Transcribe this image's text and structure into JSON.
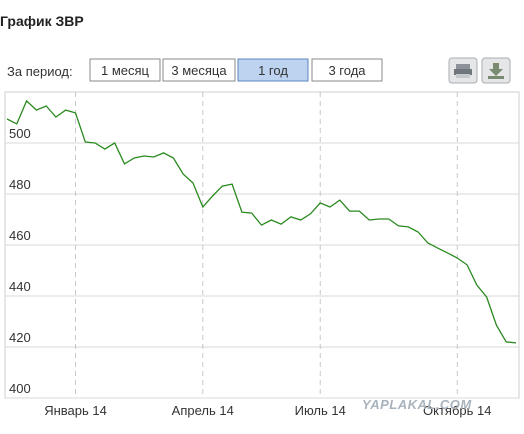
{
  "header": {
    "title": "График ЗВР"
  },
  "period_label": "За период:",
  "buttons": [
    {
      "label": "1 месяц",
      "active": false
    },
    {
      "label": "3 месяца",
      "active": false
    },
    {
      "label": "1 год",
      "active": true
    },
    {
      "label": "3 года",
      "active": false
    }
  ],
  "watermark": "YAPLAKAL.COM",
  "chart_data": {
    "type": "line",
    "color": "#2a8a1f",
    "categories": [
      null,
      null,
      null,
      null,
      null,
      null,
      null,
      "Январь 14",
      null,
      null,
      null,
      null,
      null,
      null,
      null,
      null,
      null,
      null,
      null,
      null,
      "Апрель 14",
      null,
      null,
      null,
      null,
      null,
      null,
      null,
      null,
      null,
      null,
      null,
      "Июль 14",
      null,
      null,
      null,
      null,
      null,
      null,
      null,
      null,
      null,
      null,
      null,
      null,
      null,
      "Октябрь 14",
      null,
      null,
      null,
      null,
      null,
      null
    ],
    "values": [
      509.4,
      507.5,
      516.5,
      512.9,
      514.5,
      510.2,
      512.9,
      511.8,
      500.4,
      500,
      497.6,
      500,
      491.8,
      494.1,
      494.9,
      494.5,
      496.1,
      494.1,
      487.8,
      484.3,
      474.9,
      479.2,
      483.1,
      483.9,
      472.9,
      472.5,
      467.8,
      469.8,
      468.2,
      471,
      469.8,
      472.2,
      476.5,
      474.9,
      477.6,
      473.3,
      473.3,
      469.8,
      470.2,
      470.2,
      467.5,
      467.1,
      465.1,
      460.8,
      458.8,
      456.9,
      454.9,
      452.2,
      444.3,
      439.6,
      428.6,
      422,
      421.6
    ],
    "ylim": [
      400,
      520
    ],
    "yticks": [
      400,
      420,
      440,
      460,
      480,
      500
    ],
    "grid": true,
    "xgrid": "dashed"
  }
}
